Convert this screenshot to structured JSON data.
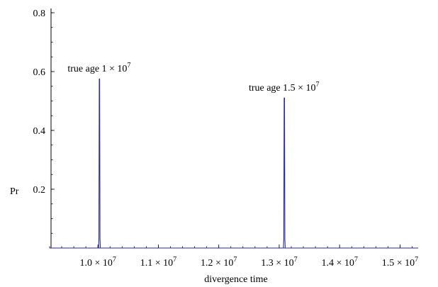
{
  "chart_data": {
    "type": "line",
    "title": "",
    "xlabel": "divergence time",
    "ylabel": "Pr",
    "xlim": [
      9200000,
      15300000
    ],
    "ylim": [
      0,
      0.8
    ],
    "x_ticks": [
      {
        "value": 10000000,
        "mantissa": "1.0",
        "exponent": "7"
      },
      {
        "value": 11000000,
        "mantissa": "1.1",
        "exponent": "7"
      },
      {
        "value": 12000000,
        "mantissa": "1.2",
        "exponent": "7"
      },
      {
        "value": 13000000,
        "mantissa": "1.3",
        "exponent": "7"
      },
      {
        "value": 14000000,
        "mantissa": "1.4",
        "exponent": "7"
      },
      {
        "value": 15000000,
        "mantissa": "1.5",
        "exponent": "7"
      }
    ],
    "y_ticks": [
      {
        "value": 0.2,
        "label": "0.2"
      },
      {
        "value": 0.4,
        "label": "0.4"
      },
      {
        "value": 0.6,
        "label": "0.6"
      },
      {
        "value": 0.8,
        "label": "0.8"
      }
    ],
    "series_color": "#2a2a9a",
    "grid": false,
    "series": [
      {
        "x": [
          9200000,
          10010000,
          10016000,
          10022000,
          10028000,
          10034000,
          10040000,
          15300000
        ],
        "y": [
          0,
          0,
          0.03,
          0.575,
          0.575,
          0.03,
          0,
          0
        ]
      },
      {
        "x": [
          9200000,
          13070000,
          13076000,
          13082000,
          13088000,
          13094000,
          13100000,
          15300000
        ],
        "y": [
          0,
          0,
          0.03,
          0.51,
          0.51,
          0.03,
          0,
          0
        ]
      }
    ],
    "annotations": [
      {
        "prefix": "true age ",
        "mantissa": "1",
        "exponent": "7",
        "x": 10020000,
        "y": 0.6
      },
      {
        "prefix": "true age ",
        "mantissa": "1.5",
        "exponent": "7",
        "x": 13080000,
        "y": 0.535
      }
    ]
  }
}
